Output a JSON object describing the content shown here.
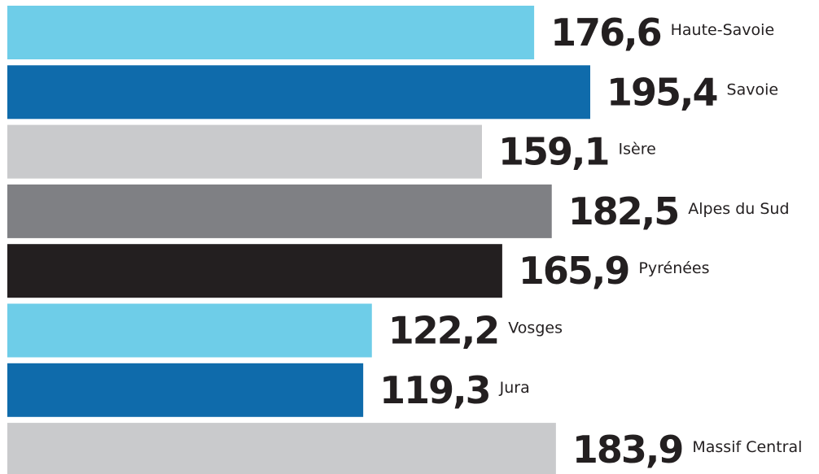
{
  "chart_data": {
    "type": "bar",
    "orientation": "horizontal",
    "categories": [
      "Haute-Savoie",
      "Savoie",
      "Isère",
      "Alpes du Sud",
      "Pyrénées",
      "Vosges",
      "Jura",
      "Massif Central"
    ],
    "values": [
      176.6,
      195.4,
      159.1,
      182.5,
      165.9,
      122.2,
      119.3,
      183.9
    ],
    "value_labels": [
      "176,6",
      "195,4",
      "159,1",
      "182,5",
      "165,9",
      "122,2",
      "119,3",
      "183,9"
    ],
    "colors": [
      "#6ecde8",
      "#0f6bab",
      "#c9cacc",
      "#7f8084",
      "#231f20",
      "#6ecde8",
      "#0f6bab",
      "#c9cacc"
    ],
    "title": "",
    "xlabel": "",
    "ylabel": "",
    "xlim": [
      0,
      195.4
    ],
    "grid": false,
    "legend": "none"
  }
}
